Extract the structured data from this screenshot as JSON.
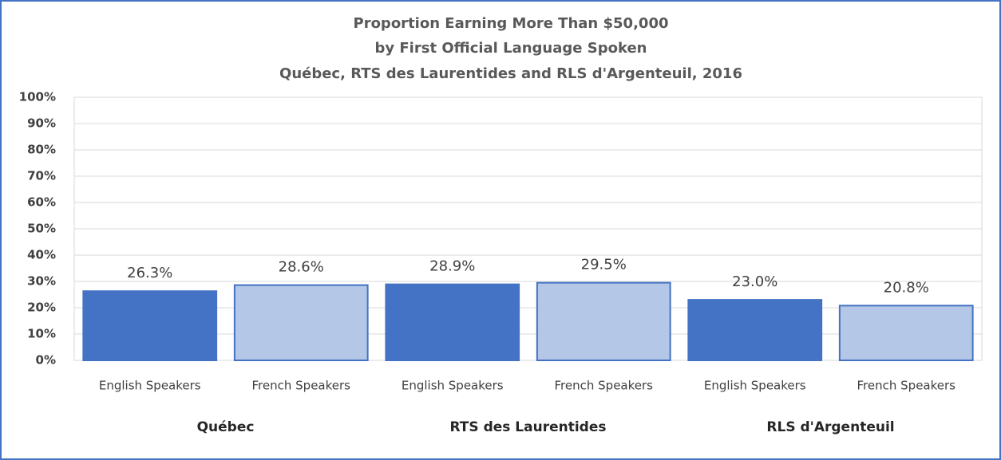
{
  "chart_data": {
    "type": "bar",
    "title": [
      "Proportion Earning More Than $50,000",
      "by First Official Language Spoken",
      "Québec, RTS des Laurentides and RLS d'Argenteuil, 2016"
    ],
    "categories": [
      "English Speakers",
      "French Speakers",
      "English Speakers",
      "French Speakers",
      "English Speakers",
      "French Speakers"
    ],
    "groups": [
      "Québec",
      "RTS des Laurentides",
      "RLS d'Argenteuil"
    ],
    "values": [
      26.3,
      28.6,
      28.9,
      29.5,
      23.0,
      20.8
    ],
    "value_labels": [
      "26.3%",
      "28.6%",
      "28.9%",
      "29.5%",
      "23.0%",
      "20.8%"
    ],
    "colors": [
      "#4472c4",
      "#b4c7e7",
      "#4472c4",
      "#b4c7e7",
      "#4472c4",
      "#b4c7e7"
    ],
    "ylim": [
      0,
      100
    ],
    "yticks": [
      {
        "value": 0,
        "label": "0%"
      },
      {
        "value": 10,
        "label": "10%"
      },
      {
        "value": 20,
        "label": "20%"
      },
      {
        "value": 30,
        "label": "30%"
      },
      {
        "value": 40,
        "label": "40%"
      },
      {
        "value": 50,
        "label": "50%"
      },
      {
        "value": 60,
        "label": "60%"
      },
      {
        "value": 70,
        "label": "70%"
      },
      {
        "value": 80,
        "label": "80%"
      },
      {
        "value": 90,
        "label": "90%"
      },
      {
        "value": 100,
        "label": "100%"
      }
    ],
    "grid": true
  }
}
